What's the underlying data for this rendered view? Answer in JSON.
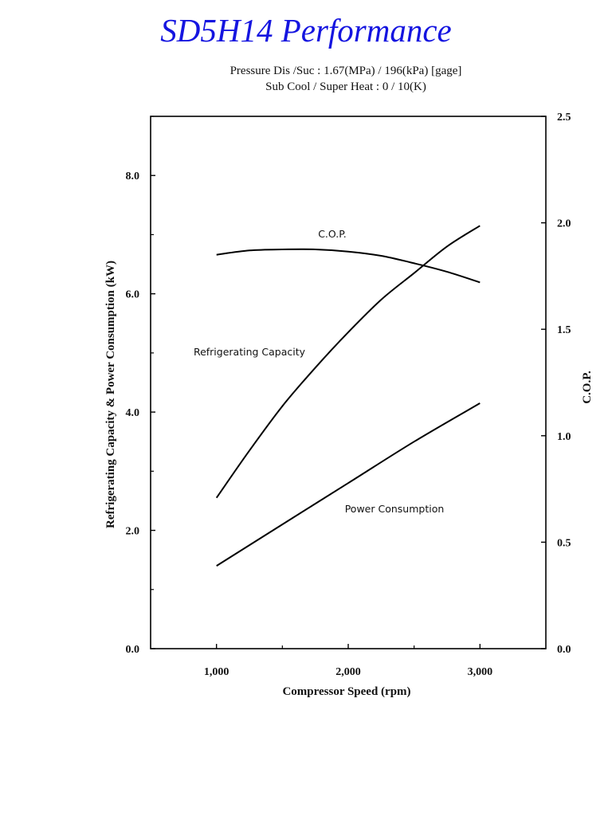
{
  "header": {
    "title": "SD5H14 Performance",
    "subtitle_line1": "Pressure Dis /Suc : 1.67(MPa) / 196(kPa) [gage]",
    "subtitle_line2": "Sub Cool / Super Heat : 0 / 10(K)"
  },
  "chart_data": {
    "type": "line",
    "title": "SD5H14 Performance",
    "xlabel": "Compressor Speed (rpm)",
    "ylabel": "Refrigerating Capacity & Power Consumption (kW)",
    "y2label": "C.O.P.",
    "xlim": [
      500,
      3500
    ],
    "ylim": [
      0,
      9
    ],
    "y2lim": [
      0,
      2.5
    ],
    "x_ticks": [
      1000,
      2000,
      3000
    ],
    "x_tick_labels": [
      "1,000",
      "2,000",
      "3,000"
    ],
    "y_ticks": [
      0,
      2,
      4,
      6,
      8
    ],
    "y_tick_labels": [
      "0.0",
      "2.0",
      "4.0",
      "6.0",
      "8.0"
    ],
    "y2_ticks": [
      0,
      0.5,
      1.0,
      1.5,
      2.0,
      2.5
    ],
    "y2_tick_labels": [
      "0.0",
      "0.5",
      "1.0",
      "1.5",
      "2.0",
      "2.5"
    ],
    "grid": false,
    "series": [
      {
        "name": "C.O.P.",
        "axis": "right",
        "x": [
          1000,
          1250,
          1500,
          1750,
          2000,
          2250,
          2500,
          2750,
          3000
        ],
        "values": [
          1.85,
          1.87,
          1.875,
          1.875,
          1.865,
          1.845,
          1.81,
          1.77,
          1.72
        ]
      },
      {
        "name": "Refrigerating Capacity",
        "axis": "left",
        "x": [
          1000,
          1250,
          1500,
          1750,
          2000,
          2250,
          2500,
          2750,
          3000
        ],
        "values": [
          2.55,
          3.35,
          4.1,
          4.75,
          5.35,
          5.9,
          6.35,
          6.8,
          7.15
        ]
      },
      {
        "name": "Power Consumption",
        "axis": "left",
        "x": [
          1000,
          1500,
          2000,
          2500,
          3000
        ],
        "values": [
          1.4,
          2.1,
          2.8,
          3.5,
          4.15
        ]
      }
    ],
    "series_labels": [
      "C.O.P.",
      "Refrigerating Capacity",
      "Power Consumption"
    ]
  }
}
